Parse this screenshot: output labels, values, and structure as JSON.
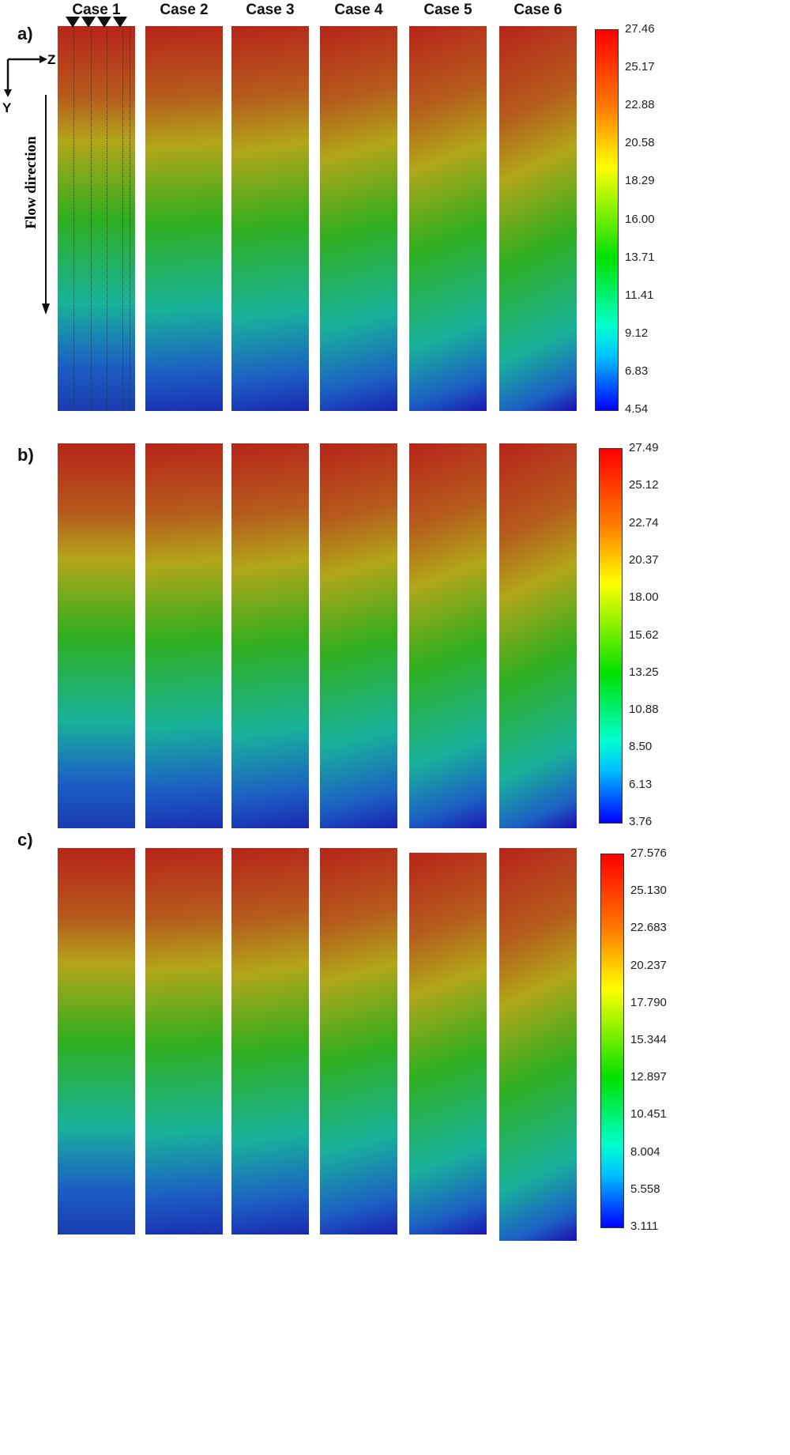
{
  "cases": [
    "Case 1",
    "Case 2",
    "Case 3",
    "Case 4",
    "Case 5",
    "Case 6"
  ],
  "rows": [
    {
      "label": "a)",
      "colorbar": [
        "27.46",
        "25.17",
        "22.88",
        "20.58",
        "18.29",
        "16.00",
        "13.71",
        "11.41",
        "9.12",
        "6.83",
        "4.54"
      ]
    },
    {
      "label": "b)",
      "colorbar": [
        "27.49",
        "25.12",
        "22.74",
        "20.37",
        "18.00",
        "15.62",
        "13.25",
        "10.88",
        "8.50",
        "6.13",
        "3.76"
      ]
    },
    {
      "label": "c)",
      "colorbar": [
        "27.576",
        "25.130",
        "22.683",
        "20.237",
        "17.790",
        "15.344",
        "12.897",
        "10.451",
        "8.004",
        "5.558",
        "3.111"
      ]
    }
  ],
  "axes": {
    "z": "Z",
    "y": "Y"
  },
  "flow_label": "Flow direction",
  "colormap": [
    "#ff0000",
    "#ff7a00",
    "#ffff00",
    "#00e000",
    "#00ffff",
    "#0000ff"
  ]
}
